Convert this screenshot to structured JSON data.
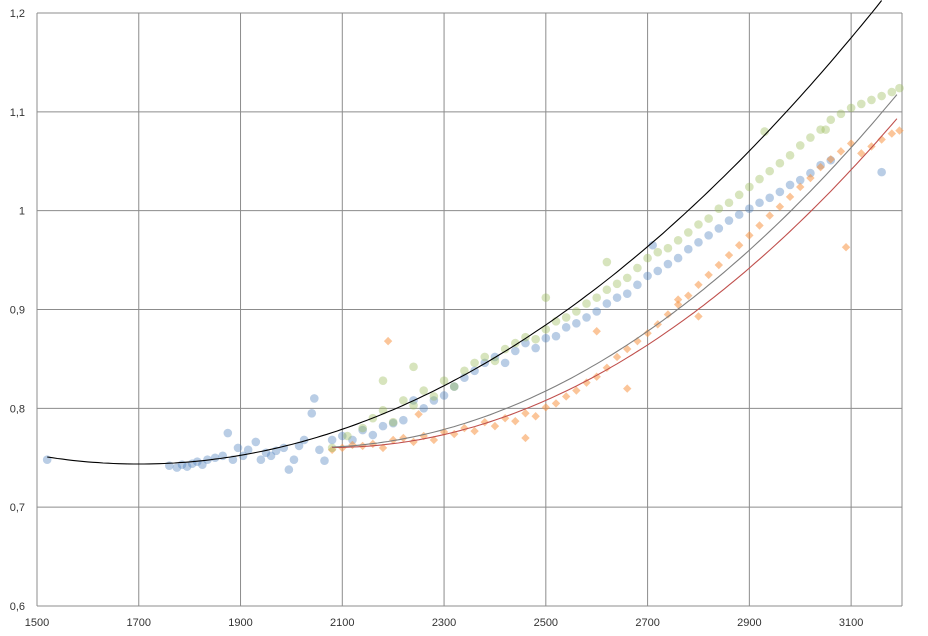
{
  "chart_data": {
    "type": "scatter",
    "title": "",
    "xlabel": "",
    "ylabel": "",
    "xlim": [
      1500,
      3200
    ],
    "ylim": [
      0.6,
      1.2
    ],
    "grid": true,
    "legend": "none",
    "x_ticks": [
      "1500",
      "1700",
      "1900",
      "2100",
      "2300",
      "2500",
      "2700",
      "2900",
      "3100"
    ],
    "y_ticks": [
      "0,6",
      "0,7",
      "0,8",
      "0,9",
      "1",
      "1,1",
      "1,2"
    ],
    "series": [
      {
        "color": "#4f81bd",
        "marker": "circle",
        "points": [
          [
            1520,
            0.748
          ],
          [
            1760,
            0.742
          ],
          [
            1775,
            0.74
          ],
          [
            1785,
            0.743
          ],
          [
            1795,
            0.741
          ],
          [
            1805,
            0.744
          ],
          [
            1815,
            0.746
          ],
          [
            1825,
            0.743
          ],
          [
            1835,
            0.748
          ],
          [
            1850,
            0.75
          ],
          [
            1865,
            0.752
          ],
          [
            1875,
            0.775
          ],
          [
            1885,
            0.748
          ],
          [
            1895,
            0.76
          ],
          [
            1905,
            0.752
          ],
          [
            1915,
            0.758
          ],
          [
            1930,
            0.766
          ],
          [
            1940,
            0.748
          ],
          [
            1950,
            0.755
          ],
          [
            1960,
            0.752
          ],
          [
            1970,
            0.757
          ],
          [
            1985,
            0.76
          ],
          [
            1995,
            0.738
          ],
          [
            2005,
            0.748
          ],
          [
            2015,
            0.762
          ],
          [
            2025,
            0.768
          ],
          [
            2040,
            0.795
          ],
          [
            2045,
            0.81
          ],
          [
            2055,
            0.758
          ],
          [
            2065,
            0.747
          ],
          [
            2080,
            0.768
          ],
          [
            2100,
            0.772
          ],
          [
            2120,
            0.768
          ],
          [
            2140,
            0.778
          ],
          [
            2160,
            0.773
          ],
          [
            2180,
            0.782
          ],
          [
            2200,
            0.785
          ],
          [
            2220,
            0.788
          ],
          [
            2240,
            0.808
          ],
          [
            2260,
            0.8
          ],
          [
            2280,
            0.808
          ],
          [
            2300,
            0.813
          ],
          [
            2320,
            0.822
          ],
          [
            2340,
            0.831
          ],
          [
            2360,
            0.838
          ],
          [
            2380,
            0.846
          ],
          [
            2400,
            0.852
          ],
          [
            2420,
            0.846
          ],
          [
            2440,
            0.858
          ],
          [
            2460,
            0.866
          ],
          [
            2480,
            0.861
          ],
          [
            2500,
            0.871
          ],
          [
            2520,
            0.873
          ],
          [
            2540,
            0.882
          ],
          [
            2560,
            0.886
          ],
          [
            2580,
            0.892
          ],
          [
            2600,
            0.898
          ],
          [
            2620,
            0.906
          ],
          [
            2640,
            0.912
          ],
          [
            2660,
            0.916
          ],
          [
            2680,
            0.925
          ],
          [
            2700,
            0.934
          ],
          [
            2710,
            0.965
          ],
          [
            2720,
            0.939
          ],
          [
            2740,
            0.946
          ],
          [
            2760,
            0.952
          ],
          [
            2780,
            0.961
          ],
          [
            2800,
            0.968
          ],
          [
            2820,
            0.975
          ],
          [
            2840,
            0.982
          ],
          [
            2860,
            0.99
          ],
          [
            2880,
            0.996
          ],
          [
            2900,
            1.002
          ],
          [
            2920,
            1.008
          ],
          [
            2940,
            1.013
          ],
          [
            2960,
            1.019
          ],
          [
            2980,
            1.026
          ],
          [
            3000,
            1.031
          ],
          [
            3020,
            1.038
          ],
          [
            3040,
            1.046
          ],
          [
            3060,
            1.051
          ],
          [
            3160,
            1.039
          ]
        ]
      },
      {
        "color": "#f79646",
        "marker": "diamond",
        "points": [
          [
            2080,
            0.758
          ],
          [
            2100,
            0.76
          ],
          [
            2120,
            0.763
          ],
          [
            2140,
            0.762
          ],
          [
            2160,
            0.764
          ],
          [
            2180,
            0.76
          ],
          [
            2200,
            0.768
          ],
          [
            2220,
            0.77
          ],
          [
            2240,
            0.766
          ],
          [
            2260,
            0.772
          ],
          [
            2280,
            0.768
          ],
          [
            2300,
            0.776
          ],
          [
            2320,
            0.774
          ],
          [
            2340,
            0.78
          ],
          [
            2360,
            0.777
          ],
          [
            2380,
            0.786
          ],
          [
            2400,
            0.782
          ],
          [
            2420,
            0.79
          ],
          [
            2440,
            0.787
          ],
          [
            2460,
            0.795
          ],
          [
            2480,
            0.792
          ],
          [
            2500,
            0.801
          ],
          [
            2520,
            0.805
          ],
          [
            2540,
            0.812
          ],
          [
            2560,
            0.818
          ],
          [
            2580,
            0.826
          ],
          [
            2600,
            0.832
          ],
          [
            2620,
            0.841
          ],
          [
            2640,
            0.852
          ],
          [
            2660,
            0.86
          ],
          [
            2680,
            0.868
          ],
          [
            2700,
            0.876
          ],
          [
            2720,
            0.885
          ],
          [
            2740,
            0.895
          ],
          [
            2760,
            0.905
          ],
          [
            2780,
            0.914
          ],
          [
            2800,
            0.925
          ],
          [
            2820,
            0.935
          ],
          [
            2840,
            0.945
          ],
          [
            2860,
            0.955
          ],
          [
            2880,
            0.965
          ],
          [
            2900,
            0.975
          ],
          [
            2920,
            0.985
          ],
          [
            2940,
            0.995
          ],
          [
            2960,
            1.004
          ],
          [
            2980,
            1.014
          ],
          [
            3000,
            1.024
          ],
          [
            3020,
            1.033
          ],
          [
            3040,
            1.044
          ],
          [
            3060,
            1.052
          ],
          [
            3080,
            1.06
          ],
          [
            3100,
            1.068
          ],
          [
            3120,
            1.058
          ],
          [
            3140,
            1.065
          ],
          [
            3160,
            1.072
          ],
          [
            3180,
            1.078
          ],
          [
            3195,
            1.081
          ],
          [
            2190,
            0.868
          ],
          [
            2250,
            0.794
          ],
          [
            2460,
            0.77
          ],
          [
            2600,
            0.878
          ],
          [
            2660,
            0.82
          ],
          [
            2760,
            0.91
          ],
          [
            2800,
            0.893
          ],
          [
            3090,
            0.963
          ]
        ]
      },
      {
        "color": "#9bbb59",
        "marker": "circle",
        "points": [
          [
            2080,
            0.76
          ],
          [
            2110,
            0.772
          ],
          [
            2140,
            0.78
          ],
          [
            2160,
            0.79
          ],
          [
            2180,
            0.798
          ],
          [
            2200,
            0.786
          ],
          [
            2220,
            0.808
          ],
          [
            2240,
            0.803
          ],
          [
            2260,
            0.818
          ],
          [
            2280,
            0.812
          ],
          [
            2300,
            0.828
          ],
          [
            2320,
            0.822
          ],
          [
            2340,
            0.838
          ],
          [
            2360,
            0.846
          ],
          [
            2380,
            0.852
          ],
          [
            2400,
            0.848
          ],
          [
            2420,
            0.86
          ],
          [
            2440,
            0.866
          ],
          [
            2460,
            0.872
          ],
          [
            2480,
            0.87
          ],
          [
            2500,
            0.88
          ],
          [
            2520,
            0.888
          ],
          [
            2540,
            0.892
          ],
          [
            2560,
            0.898
          ],
          [
            2580,
            0.906
          ],
          [
            2600,
            0.912
          ],
          [
            2620,
            0.92
          ],
          [
            2640,
            0.926
          ],
          [
            2660,
            0.932
          ],
          [
            2680,
            0.942
          ],
          [
            2700,
            0.952
          ],
          [
            2720,
            0.958
          ],
          [
            2740,
            0.962
          ],
          [
            2760,
            0.97
          ],
          [
            2780,
            0.978
          ],
          [
            2800,
            0.986
          ],
          [
            2820,
            0.992
          ],
          [
            2840,
            1.002
          ],
          [
            2860,
            1.008
          ],
          [
            2880,
            1.016
          ],
          [
            2900,
            1.024
          ],
          [
            2920,
            1.032
          ],
          [
            2940,
            1.04
          ],
          [
            2960,
            1.048
          ],
          [
            2980,
            1.056
          ],
          [
            3000,
            1.066
          ],
          [
            3020,
            1.074
          ],
          [
            3040,
            1.082
          ],
          [
            3060,
            1.092
          ],
          [
            3080,
            1.098
          ],
          [
            3100,
            1.104
          ],
          [
            3120,
            1.108
          ],
          [
            3140,
            1.112
          ],
          [
            3160,
            1.116
          ],
          [
            3180,
            1.12
          ],
          [
            3195,
            1.124
          ],
          [
            2620,
            0.948
          ],
          [
            2500,
            0.912
          ],
          [
            2180,
            0.828
          ],
          [
            2240,
            0.842
          ],
          [
            2930,
            1.08
          ],
          [
            3050,
            1.082
          ]
        ]
      }
    ],
    "trendlines": [
      {
        "color": "#000000",
        "x_range": [
          1520,
          3160
        ],
        "coefficients": [
          0.74365,
          2.2e-07
        ]
      },
      {
        "color": "#c0504d",
        "x_range": [
          2080,
          3195
        ],
        "coefficients": [
          0.7604,
          2.7e-07
        ]
      },
      {
        "color": "#7f7f7f",
        "x_range": [
          2080,
          3195
        ],
        "coefficients": [
          0.7604,
          2.7e-07
        ]
      }
    ]
  }
}
